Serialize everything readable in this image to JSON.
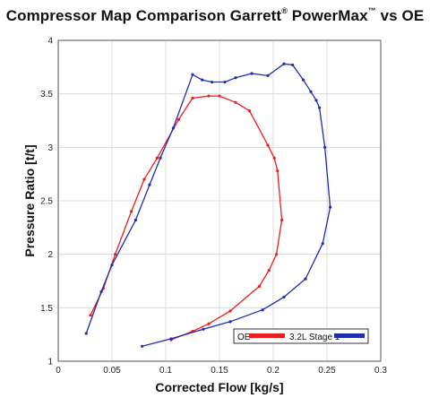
{
  "title": {
    "main": "Compressor Map Comparison Garrett",
    "reg": "®",
    "brand": " PowerMax",
    "tm": "™",
    "tail": "  vs OE"
  },
  "chart_data": {
    "type": "line",
    "title": "Compressor Map Comparison Garrett® PowerMax™ vs OE",
    "xlabel": "Corrected Flow [kg/s]",
    "ylabel": "Pressure Ratio [t/t]",
    "xlim": [
      0,
      0.3
    ],
    "ylim": [
      1,
      4
    ],
    "xticks": [
      0,
      0.05,
      0.1,
      0.15,
      0.2,
      0.25,
      0.3
    ],
    "xtick_labels": [
      "0",
      "0.05",
      "0.1",
      "0.15",
      "0.2",
      "0.25",
      "0.3"
    ],
    "yticks": [
      1,
      1.5,
      2,
      2.5,
      3,
      3.5,
      4
    ],
    "ytick_labels": [
      "1",
      "1.5",
      "2",
      "2.5",
      "3",
      "3.5",
      "4"
    ],
    "grid": true,
    "legend_position": "bottom-right",
    "series": [
      {
        "name": "OE",
        "color": "#ee1c1c",
        "points": [
          [
            0.03,
            1.43
          ],
          [
            0.042,
            1.68
          ],
          [
            0.053,
            2.0
          ],
          [
            0.068,
            2.4
          ],
          [
            0.08,
            2.7
          ],
          [
            0.092,
            2.9
          ],
          [
            0.112,
            3.26
          ],
          [
            0.125,
            3.46
          ],
          [
            0.14,
            3.48
          ],
          [
            0.15,
            3.48
          ],
          [
            0.165,
            3.42
          ],
          [
            0.178,
            3.34
          ],
          [
            0.195,
            3.02
          ],
          [
            0.201,
            2.9
          ],
          [
            0.204,
            2.78
          ],
          [
            0.208,
            2.32
          ],
          [
            0.203,
            2.0
          ],
          [
            0.196,
            1.85
          ],
          [
            0.187,
            1.7
          ],
          [
            0.16,
            1.47
          ],
          [
            0.14,
            1.35
          ],
          [
            0.125,
            1.28
          ],
          [
            0.105,
            1.2
          ]
        ]
      },
      {
        "name": "3.2L Stage 1",
        "color": "#1f2db0",
        "points": [
          [
            0.026,
            1.26
          ],
          [
            0.04,
            1.65
          ],
          [
            0.05,
            1.9
          ],
          [
            0.072,
            2.32
          ],
          [
            0.085,
            2.65
          ],
          [
            0.095,
            2.9
          ],
          [
            0.107,
            3.18
          ],
          [
            0.125,
            3.68
          ],
          [
            0.134,
            3.63
          ],
          [
            0.143,
            3.61
          ],
          [
            0.155,
            3.61
          ],
          [
            0.165,
            3.65
          ],
          [
            0.18,
            3.69
          ],
          [
            0.195,
            3.67
          ],
          [
            0.21,
            3.78
          ],
          [
            0.218,
            3.77
          ],
          [
            0.228,
            3.63
          ],
          [
            0.235,
            3.52
          ],
          [
            0.24,
            3.44
          ],
          [
            0.243,
            3.37
          ],
          [
            0.248,
            3.0
          ],
          [
            0.253,
            2.44
          ],
          [
            0.246,
            2.1
          ],
          [
            0.23,
            1.77
          ],
          [
            0.21,
            1.6
          ],
          [
            0.19,
            1.48
          ],
          [
            0.16,
            1.37
          ],
          [
            0.135,
            1.3
          ],
          [
            0.105,
            1.21
          ],
          [
            0.078,
            1.14
          ]
        ]
      }
    ]
  },
  "legend": [
    {
      "label": "OE",
      "color": "#ee1c1c"
    },
    {
      "label": "3.2L Stage 1",
      "color": "#1f2db0"
    }
  ]
}
